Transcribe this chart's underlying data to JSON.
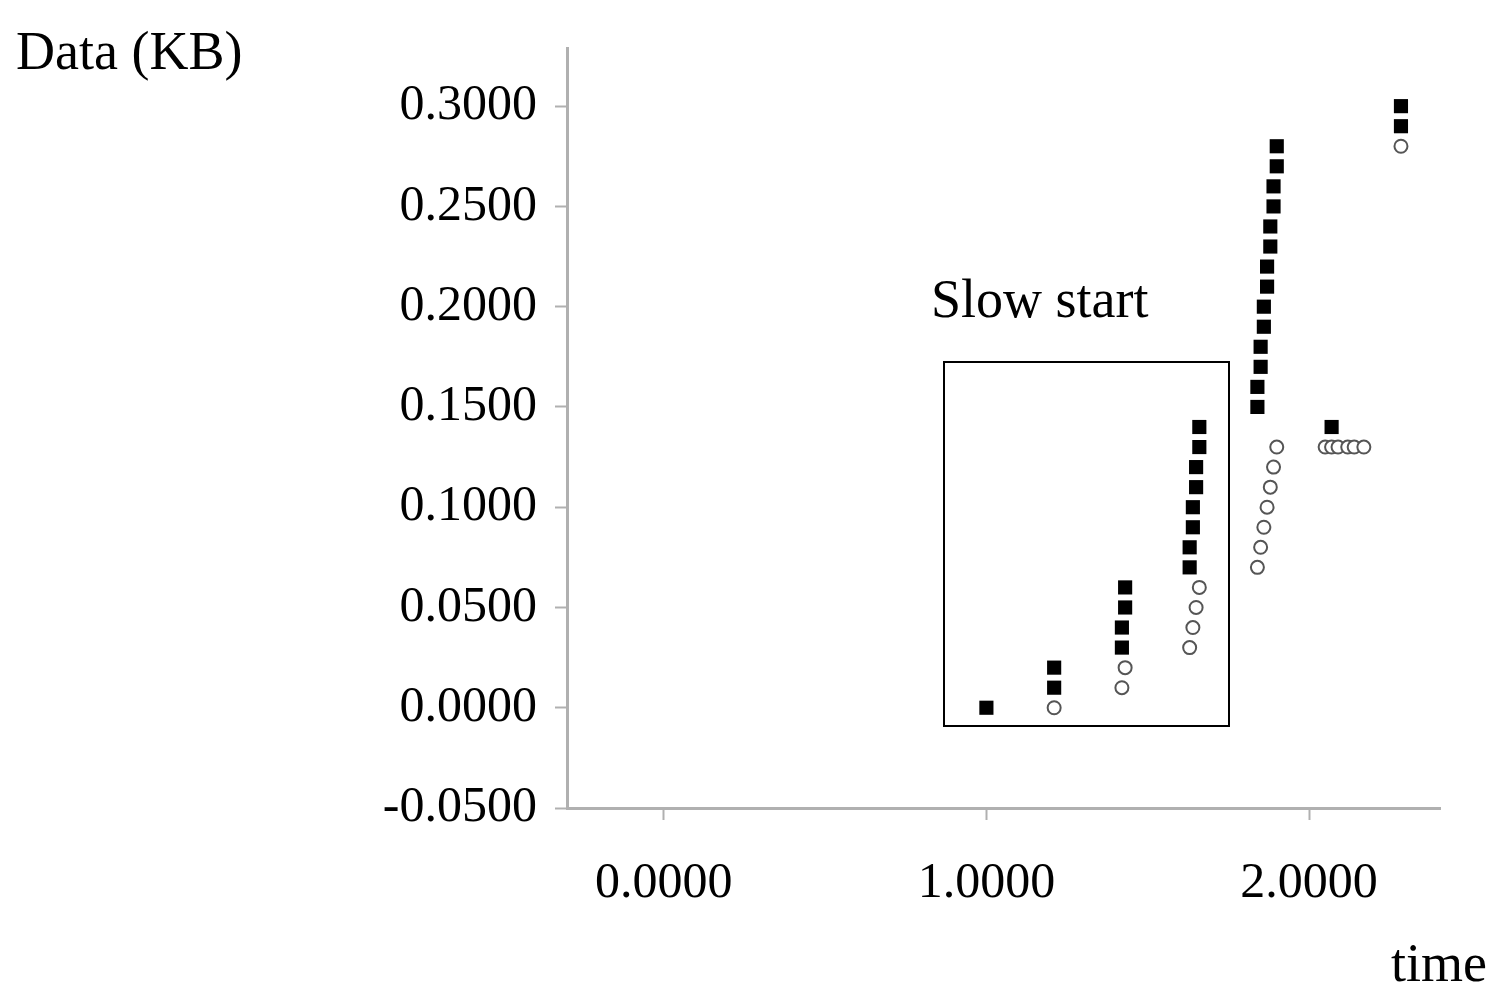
{
  "chart_data": {
    "type": "scatter",
    "xlabel": "time",
    "ylabel": "Data (KB)",
    "xlim": [
      -0.3,
      2.406
    ],
    "xticks": [
      {
        "value": 0,
        "label": "0.0000"
      },
      {
        "value": 1,
        "label": "1.0000"
      },
      {
        "value": 2,
        "label": "2.0000"
      }
    ],
    "ylim": [
      -0.05,
      0.329
    ],
    "yticks": [
      {
        "value": -0.05,
        "label": "-0.0500"
      },
      {
        "value": 0,
        "label": "0.0000"
      },
      {
        "value": 0.05,
        "label": "0.0500"
      },
      {
        "value": 0.1,
        "label": "0.1000"
      },
      {
        "value": 0.15,
        "label": "0.1500"
      },
      {
        "value": 0.2,
        "label": "0.2000"
      },
      {
        "value": 0.25,
        "label": "0.2500"
      },
      {
        "value": 0.3,
        "label": "0.3000"
      }
    ],
    "grid": false,
    "legend": false,
    "annotations": [
      "Slow start"
    ],
    "series": [
      {
        "color": "#000000",
        "marker": "square",
        "x": [
          1.0,
          1.21,
          1.21,
          1.42,
          1.42,
          1.43,
          1.43,
          1.63,
          1.63,
          1.64,
          1.64,
          1.65,
          1.65,
          1.66,
          1.66,
          1.84,
          1.84,
          1.85,
          1.85,
          1.86,
          1.86,
          1.87,
          1.87,
          1.88,
          1.88,
          1.89,
          1.89,
          1.9,
          1.9,
          2.07,
          2.285,
          2.285
        ],
        "values": [
          0.0,
          0.01,
          0.02,
          0.03,
          0.04,
          0.05,
          0.06,
          0.07,
          0.08,
          0.09,
          0.1,
          0.11,
          0.12,
          0.13,
          0.14,
          0.15,
          0.16,
          0.17,
          0.18,
          0.19,
          0.2,
          0.21,
          0.22,
          0.23,
          0.24,
          0.25,
          0.26,
          0.27,
          0.28,
          0.14,
          0.29,
          0.3
        ]
      },
      {
        "color": "#555555",
        "marker": "circle",
        "x": [
          1.21,
          1.42,
          1.43,
          1.63,
          1.64,
          1.65,
          1.66,
          1.84,
          1.85,
          1.86,
          1.87,
          1.88,
          1.89,
          1.9,
          2.05,
          2.07,
          2.09,
          2.12,
          2.14,
          2.17,
          2.285
        ],
        "values": [
          0.0,
          0.01,
          0.02,
          0.03,
          0.04,
          0.05,
          0.06,
          0.07,
          0.08,
          0.09,
          0.1,
          0.11,
          0.12,
          0.13,
          0.13,
          0.13,
          0.13,
          0.13,
          0.13,
          0.13,
          0.28
        ]
      }
    ]
  }
}
